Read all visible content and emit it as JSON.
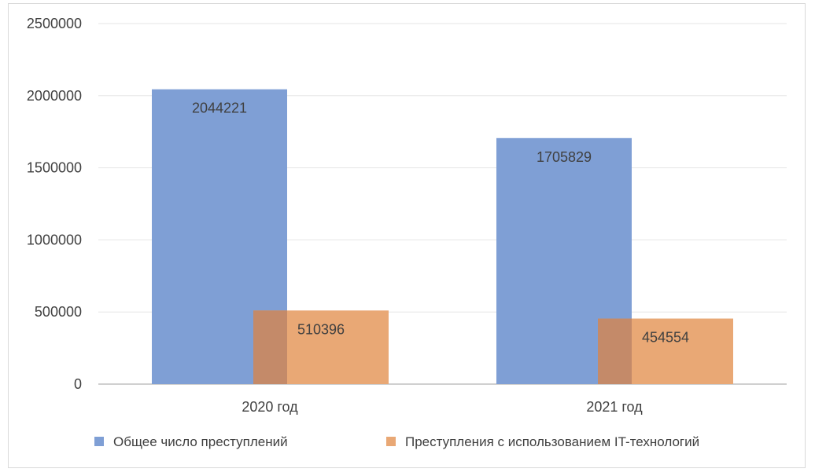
{
  "chart_data": {
    "type": "bar",
    "categories": [
      "2020 год",
      "2021 год"
    ],
    "series": [
      {
        "name": "Общее число преступлений",
        "values": [
          2044221,
          1705829
        ],
        "color": "#7f9fd5"
      },
      {
        "name": "Преступления с использованием IT-технологий",
        "values": [
          510396,
          454554
        ],
        "color": "#e9a875"
      }
    ],
    "overlap_color": "#c48a69",
    "ylim": [
      0,
      2500000
    ],
    "yticks": [
      "0",
      "500000",
      "1000000",
      "1500000",
      "2000000",
      "2500000"
    ],
    "grid": true,
    "gridline_color": "#e6e6e6",
    "axis_color": "#bfbfbf",
    "legend_position": "bottom",
    "title": "",
    "xlabel": "",
    "ylabel": ""
  }
}
